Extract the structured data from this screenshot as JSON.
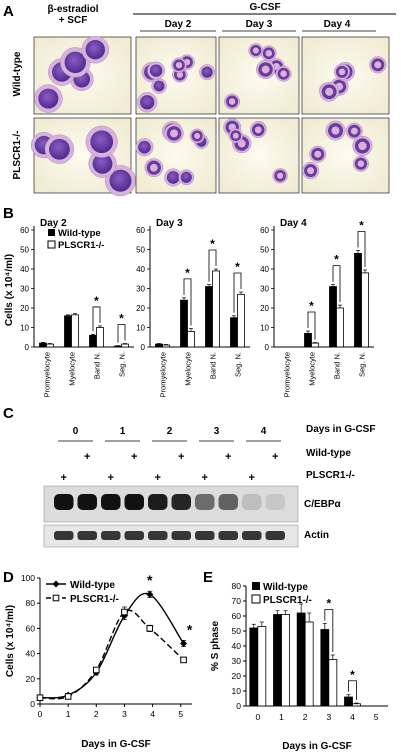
{
  "panel_a": {
    "letter": "A",
    "col_headers": [
      "β-estradiol",
      "+ SCF",
      "Day 2",
      "Day 3",
      "Day 4"
    ],
    "gcsf_header": "G-CSF",
    "row_labels": [
      "Wild-type",
      "PLSCR1-/-"
    ]
  },
  "panel_b": {
    "letter": "B",
    "ylabel": "Cells (x 10⁴/ml)",
    "legend": [
      "Wild-type",
      "PLSCR1-/-"
    ],
    "star": "*"
  },
  "panel_c": {
    "letter": "C",
    "days": [
      "0",
      "1",
      "2",
      "3",
      "4"
    ],
    "plus": "+",
    "right_labels": [
      "Days in G-CSF",
      "Wild-type",
      "PLSCR1-/-",
      "C/EBPα",
      "Actin"
    ]
  },
  "panel_d": {
    "letter": "D",
    "star": "*"
  },
  "panel_e": {
    "letter": "E",
    "star": "*"
  },
  "chart_data": [
    {
      "type": "bar",
      "panel": "B",
      "title": "Day 2",
      "ylabel": "Cells (x 10⁴/ml)",
      "ylim": [
        0,
        60
      ],
      "yticks": [
        0,
        10,
        20,
        30,
        40,
        50,
        60
      ],
      "categories": [
        "Promyelocyte",
        "Myelocyte",
        "Band N.",
        "Seg. N."
      ],
      "series": [
        {
          "name": "Wild-type",
          "values": [
            2,
            16,
            6,
            0.5
          ],
          "errors": [
            0.4,
            0.5,
            0.5,
            0.2
          ]
        },
        {
          "name": "PLSCR1-/-",
          "values": [
            1.5,
            16.5,
            10,
            1.5
          ],
          "errors": [
            0.3,
            0.6,
            0.8,
            0.3
          ]
        }
      ],
      "significant": [
        "Band N.",
        "Seg. N."
      ]
    },
    {
      "type": "bar",
      "panel": "B",
      "title": "Day 3",
      "ylim": [
        0,
        60
      ],
      "yticks": [
        0,
        10,
        20,
        30,
        40,
        50,
        60
      ],
      "categories": [
        "Promyelocyte",
        "Myelocyte",
        "Band N.",
        "Seg. N."
      ],
      "series": [
        {
          "name": "Wild-type",
          "values": [
            1.5,
            24,
            31,
            15
          ],
          "errors": [
            0.3,
            1.2,
            1.0,
            1.0
          ]
        },
        {
          "name": "PLSCR1-/-",
          "values": [
            1,
            8,
            39,
            27
          ],
          "errors": [
            0.3,
            1.5,
            1.0,
            1.2
          ]
        }
      ],
      "significant": [
        "Myelocyte",
        "Band N.",
        "Seg. N."
      ]
    },
    {
      "type": "bar",
      "panel": "B",
      "title": "Day 4",
      "ylim": [
        0,
        60
      ],
      "yticks": [
        0,
        10,
        20,
        30,
        40,
        50,
        60
      ],
      "categories": [
        "Promyelocyte",
        "Myelocyte",
        "Band N.",
        "Seg. N."
      ],
      "series": [
        {
          "name": "Wild-type",
          "values": [
            0,
            7,
            31,
            48
          ],
          "errors": [
            0,
            1.2,
            1.0,
            1.5
          ]
        },
        {
          "name": "PLSCR1-/-",
          "values": [
            0,
            2,
            20,
            38
          ],
          "errors": [
            0,
            0.3,
            1.5,
            1.5
          ]
        }
      ],
      "significant": [
        "Myelocyte",
        "Band N.",
        "Seg. N."
      ]
    },
    {
      "type": "line",
      "panel": "D",
      "xlabel": "Days in G-CSF",
      "ylabel": "Cells (x 10⁴/ml)",
      "xlim": [
        0,
        5.4
      ],
      "ylim": [
        0,
        100
      ],
      "xticks": [
        0,
        1,
        2,
        3,
        4,
        5
      ],
      "yticks": [
        0,
        20,
        40,
        60,
        80,
        100
      ],
      "series": [
        {
          "name": "Wild-type",
          "x": [
            0,
            1,
            2,
            3,
            3.9,
            5.1
          ],
          "y": [
            5,
            7,
            25,
            70,
            87,
            48
          ],
          "errors": [
            0.5,
            0.5,
            2,
            3,
            2.5,
            2.5
          ]
        },
        {
          "name": "PLSCR1-/-",
          "x": [
            0,
            1,
            2,
            3,
            3.9,
            5.1
          ],
          "y": [
            5,
            6,
            27,
            73,
            60,
            35
          ],
          "errors": [
            0.5,
            0.5,
            2,
            4,
            2.5,
            2
          ]
        }
      ],
      "significant_x": [
        3.9,
        5.1
      ],
      "legend": "top-left"
    },
    {
      "type": "bar",
      "panel": "E",
      "xlabel": "Days in G-CSF",
      "ylabel": "% S phase",
      "ylim": [
        0,
        80
      ],
      "yticks": [
        0,
        10,
        20,
        30,
        40,
        50,
        60,
        70,
        80
      ],
      "categories": [
        "0",
        "1",
        "2",
        "3",
        "4",
        "5"
      ],
      "series": [
        {
          "name": "Wild-type",
          "values": [
            52,
            61,
            62,
            51,
            6,
            0
          ],
          "errors": [
            2.5,
            2.5,
            6,
            4,
            1.5,
            0
          ]
        },
        {
          "name": "PLSCR1-/-",
          "values": [
            53,
            61,
            56,
            31,
            1.5,
            0
          ],
          "errors": [
            3,
            2.5,
            6,
            3,
            0.5,
            0
          ]
        }
      ],
      "significant": [
        "3",
        "4"
      ],
      "legend": "top-left"
    }
  ]
}
